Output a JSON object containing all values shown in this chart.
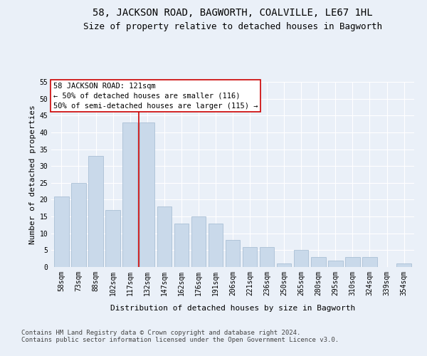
{
  "title": "58, JACKSON ROAD, BAGWORTH, COALVILLE, LE67 1HL",
  "subtitle": "Size of property relative to detached houses in Bagworth",
  "xlabel": "Distribution of detached houses by size in Bagworth",
  "ylabel": "Number of detached properties",
  "categories": [
    "58sqm",
    "73sqm",
    "88sqm",
    "102sqm",
    "117sqm",
    "132sqm",
    "147sqm",
    "162sqm",
    "176sqm",
    "191sqm",
    "206sqm",
    "221sqm",
    "236sqm",
    "250sqm",
    "265sqm",
    "280sqm",
    "295sqm",
    "310sqm",
    "324sqm",
    "339sqm",
    "354sqm"
  ],
  "values": [
    21,
    25,
    33,
    17,
    43,
    43,
    18,
    13,
    15,
    13,
    8,
    6,
    6,
    1,
    5,
    3,
    2,
    3,
    3,
    0,
    1
  ],
  "bar_color": "#c9d9ea",
  "bar_edge_color": "#a0b8d0",
  "vline_x": 4.5,
  "vline_color": "#cc0000",
  "annotation_text": "58 JACKSON ROAD: 121sqm\n← 50% of detached houses are smaller (116)\n50% of semi-detached houses are larger (115) →",
  "annotation_box_color": "white",
  "annotation_box_edge_color": "#cc0000",
  "ylim": [
    0,
    55
  ],
  "yticks": [
    0,
    5,
    10,
    15,
    20,
    25,
    30,
    35,
    40,
    45,
    50,
    55
  ],
  "footer_text": "Contains HM Land Registry data © Crown copyright and database right 2024.\nContains public sector information licensed under the Open Government Licence v3.0.",
  "bg_color": "#eaf0f8",
  "plot_bg_color": "#eaf0f8",
  "grid_color": "white",
  "title_fontsize": 10,
  "subtitle_fontsize": 9,
  "label_fontsize": 8,
  "tick_fontsize": 7,
  "footer_fontsize": 6.5,
  "annotation_fontsize": 7.5
}
